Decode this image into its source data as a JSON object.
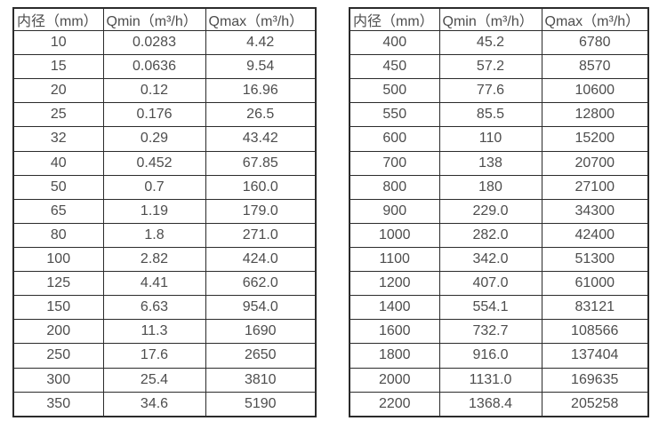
{
  "style": {
    "background": "#ffffff",
    "text_color": "#4d4d4d",
    "border_color": "#2b2b2b"
  },
  "tables": [
    {
      "name": "flow-spec-table-small-diameters",
      "headers": [
        "内径（mm）",
        "Qmin（m³/h）",
        "Qmax（m³/h）"
      ],
      "rows": [
        [
          "10",
          "0.0283",
          "4.42"
        ],
        [
          "15",
          "0.0636",
          "9.54"
        ],
        [
          "20",
          "0.12",
          "16.96"
        ],
        [
          "25",
          "0.176",
          "26.5"
        ],
        [
          "32",
          "0.29",
          "43.42"
        ],
        [
          "40",
          "0.452",
          "67.85"
        ],
        [
          "50",
          "0.7",
          "160.0"
        ],
        [
          "65",
          "1.19",
          "179.0"
        ],
        [
          "80",
          "1.8",
          "271.0"
        ],
        [
          "100",
          "2.82",
          "424.0"
        ],
        [
          "125",
          "4.41",
          "662.0"
        ],
        [
          "150",
          "6.63",
          "954.0"
        ],
        [
          "200",
          "11.3",
          "1690"
        ],
        [
          "250",
          "17.6",
          "2650"
        ],
        [
          "300",
          "25.4",
          "3810"
        ],
        [
          "350",
          "34.6",
          "5190"
        ]
      ]
    },
    {
      "name": "flow-spec-table-large-diameters",
      "headers": [
        "内径（mm）",
        "Qmin（m³/h）",
        "Qmax（m³/h）"
      ],
      "rows": [
        [
          "400",
          "45.2",
          "6780"
        ],
        [
          "450",
          "57.2",
          "8570"
        ],
        [
          "500",
          "77.6",
          "10600"
        ],
        [
          "550",
          "85.5",
          "12800"
        ],
        [
          "600",
          "110",
          "15200"
        ],
        [
          "700",
          "138",
          "20700"
        ],
        [
          "800",
          "180",
          "27100"
        ],
        [
          "900",
          "229.0",
          "34300"
        ],
        [
          "1000",
          "282.0",
          "42400"
        ],
        [
          "1100",
          "342.0",
          "51300"
        ],
        [
          "1200",
          "407.0",
          "61000"
        ],
        [
          "1400",
          "554.1",
          "83121"
        ],
        [
          "1600",
          "732.7",
          "108566"
        ],
        [
          "1800",
          "916.0",
          "137404"
        ],
        [
          "2000",
          "1131.0",
          "169635"
        ],
        [
          "2200",
          "1368.4",
          "205258"
        ]
      ]
    }
  ]
}
